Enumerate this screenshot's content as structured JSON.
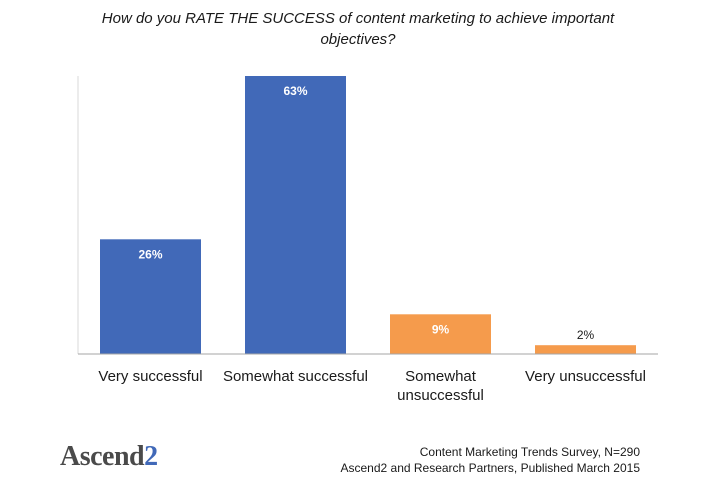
{
  "chart_data": {
    "type": "bar",
    "title": "How do you RATE THE SUCCESS of content marketing to achieve important objectives?",
    "categories": [
      "Very successful",
      "Somewhat successful",
      "Somewhat unsuccessful",
      "Very unsuccessful"
    ],
    "values": [
      26,
      63,
      9,
      2
    ],
    "data_labels": [
      "26%",
      "63%",
      "9%",
      "2%"
    ],
    "colors": [
      "#4169b8",
      "#4169b8",
      "#f59b4c",
      "#f59b4c"
    ],
    "ylim": [
      0,
      63
    ],
    "grid": false,
    "legend": "none"
  },
  "logo": {
    "text_main": "Ascend",
    "text_accent": "2"
  },
  "source": {
    "line1": "Content Marketing Trends Survey, N=290",
    "line2": "Ascend2 and Research Partners, Published March 2015"
  }
}
